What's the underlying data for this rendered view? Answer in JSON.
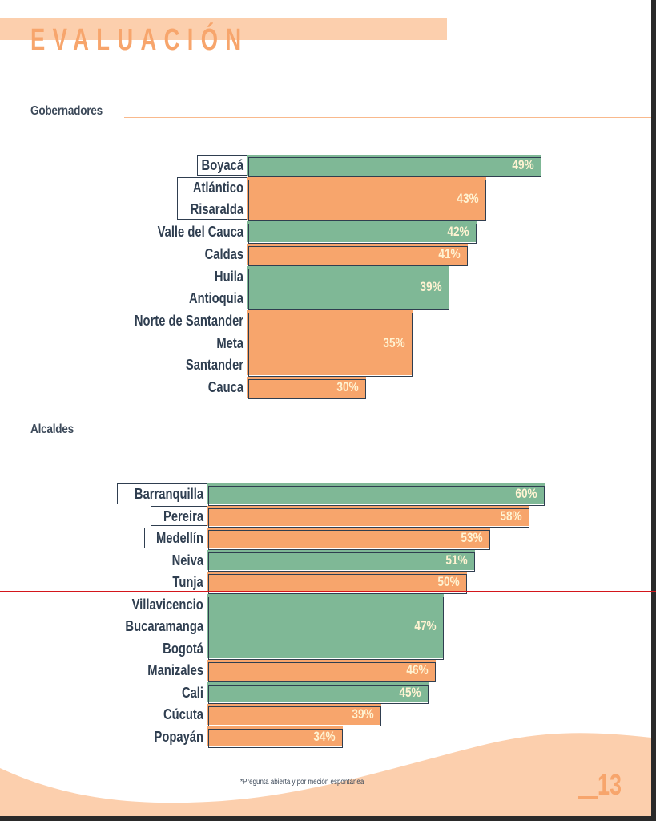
{
  "header": {
    "title": "EVALUACIÓN"
  },
  "colors": {
    "green": "#7fb896",
    "orange": "#f7a56c",
    "peach": "#fccfad",
    "text": "#2f3e50"
  },
  "chart_data": [
    {
      "type": "bar",
      "orientation": "horizontal",
      "title": "Gobernadores",
      "unit": "%",
      "groups": [
        {
          "labels": [
            "Boyacá"
          ],
          "value": 49,
          "color": "green",
          "boxed": true
        },
        {
          "labels": [
            "Atlántico",
            "Risaralda"
          ],
          "value": 43,
          "color": "orange",
          "boxed": true
        },
        {
          "labels": [
            "Valle del Cauca"
          ],
          "value": 42,
          "color": "green",
          "boxed": false
        },
        {
          "labels": [
            "Caldas"
          ],
          "value": 41,
          "color": "orange",
          "boxed": false
        },
        {
          "labels": [
            "Huila",
            "Antioquia"
          ],
          "value": 39,
          "color": "green",
          "boxed": false
        },
        {
          "labels": [
            "Norte de Santander",
            "Meta",
            "Santander"
          ],
          "value": 35,
          "color": "orange",
          "boxed": false
        },
        {
          "labels": [
            "Cauca"
          ],
          "value": 30,
          "color": "orange",
          "boxed": false
        }
      ],
      "value_labels": [
        "49%",
        "43%",
        "42%",
        "41%",
        "39%",
        "35%",
        "30%"
      ]
    },
    {
      "type": "bar",
      "orientation": "horizontal",
      "title": "Alcaldes",
      "unit": "%",
      "groups": [
        {
          "labels": [
            "Barranquilla"
          ],
          "value": 60,
          "color": "green",
          "boxed": true
        },
        {
          "labels": [
            "Pereira"
          ],
          "value": 58,
          "color": "orange",
          "boxed": true
        },
        {
          "labels": [
            "Medellín"
          ],
          "value": 53,
          "color": "orange",
          "boxed": true
        },
        {
          "labels": [
            "Neiva"
          ],
          "value": 51,
          "color": "green",
          "boxed": false
        },
        {
          "labels": [
            "Tunja"
          ],
          "value": 50,
          "color": "orange",
          "boxed": false
        },
        {
          "labels": [
            "Villavicencio",
            "Bucaramanga",
            "Bogotá"
          ],
          "value": 47,
          "color": "green",
          "boxed": false
        },
        {
          "labels": [
            "Manizales"
          ],
          "value": 46,
          "color": "orange",
          "boxed": false
        },
        {
          "labels": [
            "Cali"
          ],
          "value": 45,
          "color": "green",
          "boxed": false
        },
        {
          "labels": [
            "Cúcuta"
          ],
          "value": 39,
          "color": "orange",
          "boxed": false
        },
        {
          "labels": [
            "Popayán"
          ],
          "value": 34,
          "color": "orange",
          "boxed": false
        }
      ],
      "value_labels": [
        "60%",
        "58%",
        "53%",
        "51%",
        "50%",
        "47%",
        "46%",
        "45%",
        "39%",
        "34%"
      ]
    }
  ],
  "footer": {
    "footnote": "*Pregunta abierta y por meción espontánea",
    "page_number": "13"
  }
}
